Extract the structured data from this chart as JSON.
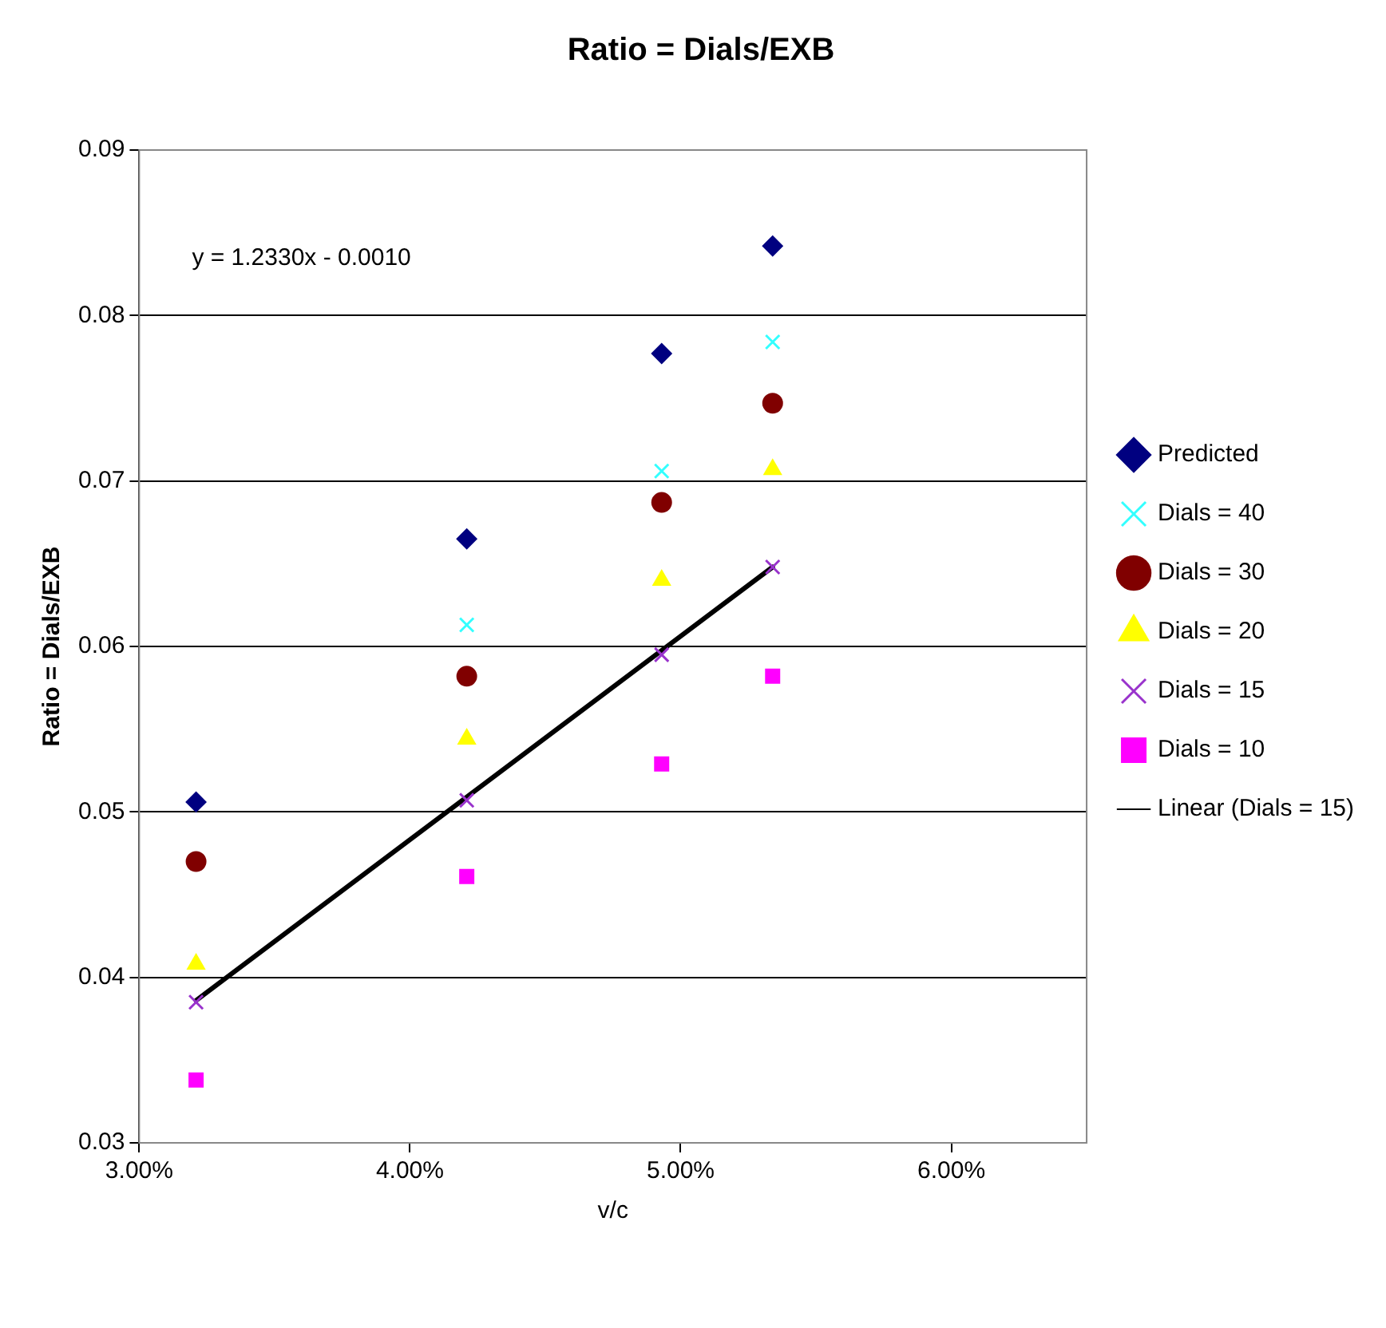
{
  "chart_data": {
    "type": "scatter",
    "title": "Ratio = Dials/EXB",
    "xlabel": "v/c",
    "ylabel": "Ratio = Dials/EXB",
    "annotations": [
      "y = 1.2330x - 0.0010"
    ],
    "x": [
      0.0321,
      0.0421,
      0.0493,
      0.0534
    ],
    "xlim": [
      0.03,
      0.065
    ],
    "xticks": [
      {
        "value": 0.03,
        "label": "3.00%"
      },
      {
        "value": 0.04,
        "label": "4.00%"
      },
      {
        "value": 0.05,
        "label": "5.00%"
      },
      {
        "value": 0.06,
        "label": "6.00%"
      }
    ],
    "ylim": [
      0.03,
      0.09
    ],
    "yticks": [
      {
        "value": 0.03,
        "label": "0.03"
      },
      {
        "value": 0.04,
        "label": "0.04"
      },
      {
        "value": 0.05,
        "label": "0.05"
      },
      {
        "value": 0.06,
        "label": "0.06"
      },
      {
        "value": 0.07,
        "label": "0.07"
      },
      {
        "value": 0.08,
        "label": "0.08"
      },
      {
        "value": 0.09,
        "label": "0.09"
      }
    ],
    "grid": "y",
    "legend": "right",
    "series": [
      {
        "name": "Predicted",
        "color": "#000080",
        "marker": "diamond",
        "values": [
          0.0506,
          0.0665,
          0.0777,
          0.0842
        ]
      },
      {
        "name": "Dials = 40",
        "color": "#33ffff",
        "marker": "cross",
        "values": [
          null,
          0.0613,
          0.0706,
          0.0784
        ]
      },
      {
        "name": "Dials = 30",
        "color": "#800000",
        "marker": "circle",
        "values": [
          0.047,
          0.0582,
          0.0687,
          0.0747
        ]
      },
      {
        "name": "Dials = 20",
        "color": "#ffff00",
        "marker": "triangle",
        "values": [
          0.0408,
          0.0544,
          0.064,
          0.0707
        ]
      },
      {
        "name": "Dials = 15",
        "color": "#9933cc",
        "marker": "cross",
        "values": [
          0.0385,
          0.0507,
          0.0595,
          0.0648
        ]
      },
      {
        "name": "Dials = 10",
        "color": "#ff00ff",
        "marker": "square",
        "values": [
          0.0338,
          0.0461,
          0.0529,
          0.0582
        ]
      },
      {
        "name": "Linear (Dials = 15)",
        "type": "line",
        "color": "#000000",
        "marker": "none",
        "x": [
          0.0321,
          0.0534
        ],
        "values": [
          0.0386,
          0.0648
        ]
      }
    ]
  }
}
